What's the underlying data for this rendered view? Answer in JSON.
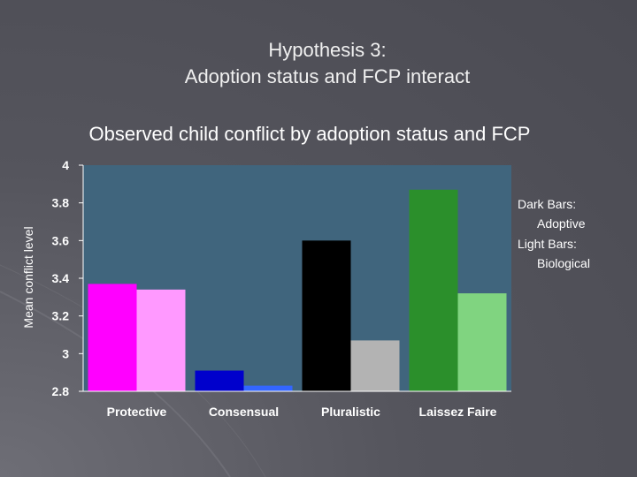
{
  "slide": {
    "title_line1": "Hypothesis 3:",
    "title_line2": "Adoption status and FCP interact"
  },
  "legend": {
    "dark_line1": "Dark Bars:",
    "dark_line2": "Adoptive",
    "light_line1": "Light Bars:",
    "light_line2": "Biological"
  },
  "chart_data": {
    "type": "bar",
    "title": "Observed child conflict by adoption status and FCP",
    "ylabel": "Mean conflict level",
    "xlabel": "",
    "categories": [
      "Protective",
      "Consensual",
      "Pluralistic",
      "Laissez Faire"
    ],
    "series": [
      {
        "values": [
          3.37,
          2.91,
          3.6,
          3.87
        ]
      },
      {
        "values": [
          3.34,
          2.83,
          3.07,
          3.32
        ]
      }
    ],
    "bar_colors": [
      [
        "#ff00ff",
        "#ff99ff"
      ],
      [
        "#0000cc",
        "#3366ff"
      ],
      [
        "#000000",
        "#b3b3b3"
      ],
      [
        "#2b8f2b",
        "#80d480"
      ]
    ],
    "plot_background": "#40657d",
    "ylim": [
      2.8,
      4
    ],
    "yticks": [
      "2.8",
      "3",
      "3.2",
      "3.4",
      "3.6",
      "3.8",
      "4"
    ],
    "grid": false,
    "legend_position": "right"
  }
}
